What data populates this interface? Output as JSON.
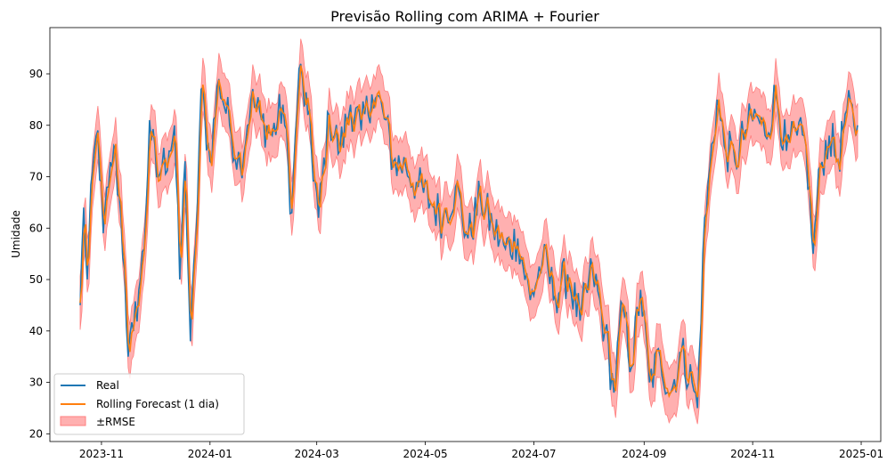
{
  "chart_data": {
    "type": "line",
    "title": "Previsão Rolling com ARIMA + Fourier",
    "xlabel": "",
    "ylabel": "Umidade",
    "x_ticks": [
      "2023-11",
      "2024-01",
      "2024-03",
      "2024-05",
      "2024-07",
      "2024-09",
      "2024-11",
      "2025-01"
    ],
    "y_ticks": [
      20,
      30,
      40,
      50,
      60,
      70,
      80,
      90
    ],
    "xlim": [
      "2023-10-03",
      "2025-01-12"
    ],
    "ylim": [
      18.5,
      99
    ],
    "legend_position": "lower-left",
    "grid": false,
    "x_start": "2023-10-20",
    "anchors": [
      [
        "2023-10-20",
        45
      ],
      [
        "2023-10-22",
        64
      ],
      [
        "2023-10-24",
        50
      ],
      [
        "2023-10-27",
        71
      ],
      [
        "2023-10-30",
        79
      ],
      [
        "2023-11-02",
        59
      ],
      [
        "2023-11-05",
        68
      ],
      [
        "2023-11-08",
        76
      ],
      [
        "2023-11-11",
        66
      ],
      [
        "2023-11-14",
        52
      ],
      [
        "2023-11-16",
        35
      ],
      [
        "2023-11-19",
        40
      ],
      [
        "2023-11-22",
        48
      ],
      [
        "2023-11-25",
        56
      ],
      [
        "2023-11-28",
        81
      ],
      [
        "2023-12-02",
        70
      ],
      [
        "2023-12-05",
        72
      ],
      [
        "2023-12-09",
        75
      ],
      [
        "2023-12-12",
        80
      ],
      [
        "2023-12-15",
        50
      ],
      [
        "2023-12-18",
        73
      ],
      [
        "2023-12-21",
        38
      ],
      [
        "2023-12-24",
        57
      ],
      [
        "2023-12-27",
        87
      ],
      [
        "2024-01-01",
        73
      ],
      [
        "2024-01-06",
        89
      ],
      [
        "2024-01-12",
        80
      ],
      [
        "2024-01-18",
        72
      ],
      [
        "2024-01-24",
        85
      ],
      [
        "2024-01-30",
        81
      ],
      [
        "2024-02-05",
        78
      ],
      [
        "2024-02-11",
        84
      ],
      [
        "2024-02-16",
        63
      ],
      [
        "2024-02-20",
        91
      ],
      [
        "2024-02-25",
        82
      ],
      [
        "2024-03-02",
        62
      ],
      [
        "2024-03-08",
        82
      ],
      [
        "2024-03-14",
        75
      ],
      [
        "2024-03-20",
        84
      ],
      [
        "2024-03-26",
        79
      ],
      [
        "2024-04-01",
        86
      ],
      [
        "2024-04-07",
        83
      ],
      [
        "2024-04-13",
        73
      ],
      [
        "2024-04-20",
        72
      ],
      [
        "2024-04-27",
        68
      ],
      [
        "2024-05-04",
        65
      ],
      [
        "2024-05-11",
        62
      ],
      [
        "2024-05-18",
        68
      ],
      [
        "2024-05-25",
        58
      ],
      [
        "2024-06-01",
        66
      ],
      [
        "2024-06-08",
        60
      ],
      [
        "2024-06-15",
        56
      ],
      [
        "2024-06-22",
        58
      ],
      [
        "2024-06-29",
        46
      ],
      [
        "2024-07-06",
        54
      ],
      [
        "2024-07-13",
        47
      ],
      [
        "2024-07-20",
        51
      ],
      [
        "2024-07-27",
        42
      ],
      [
        "2024-08-03",
        52
      ],
      [
        "2024-08-10",
        40
      ],
      [
        "2024-08-15",
        28
      ],
      [
        "2024-08-20",
        45
      ],
      [
        "2024-08-25",
        33
      ],
      [
        "2024-08-30",
        48
      ],
      [
        "2024-09-04",
        30
      ],
      [
        "2024-09-10",
        35
      ],
      [
        "2024-09-16",
        28
      ],
      [
        "2024-09-22",
        36
      ],
      [
        "2024-09-28",
        30
      ],
      [
        "2024-10-01",
        25
      ],
      [
        "2024-10-04",
        55
      ],
      [
        "2024-10-08",
        72
      ],
      [
        "2024-10-12",
        85
      ],
      [
        "2024-10-16",
        76
      ],
      [
        "2024-10-22",
        73
      ],
      [
        "2024-10-28",
        79
      ],
      [
        "2024-11-03",
        82
      ],
      [
        "2024-11-08",
        78
      ],
      [
        "2024-11-14",
        86
      ],
      [
        "2024-11-20",
        75
      ],
      [
        "2024-11-26",
        78
      ],
      [
        "2024-12-01",
        76
      ],
      [
        "2024-12-05",
        55
      ],
      [
        "2024-12-09",
        72
      ],
      [
        "2024-12-14",
        78
      ],
      [
        "2024-12-19",
        73
      ],
      [
        "2024-12-24",
        83
      ],
      [
        "2024-12-30",
        80
      ]
    ],
    "series": [
      {
        "name": "Real",
        "color": "#1f77b4"
      },
      {
        "name": "Rolling Forecast (1 dia)",
        "color": "#ff7f0e"
      },
      {
        "name": "±RMSE",
        "color": "#ff6f6f"
      }
    ]
  }
}
